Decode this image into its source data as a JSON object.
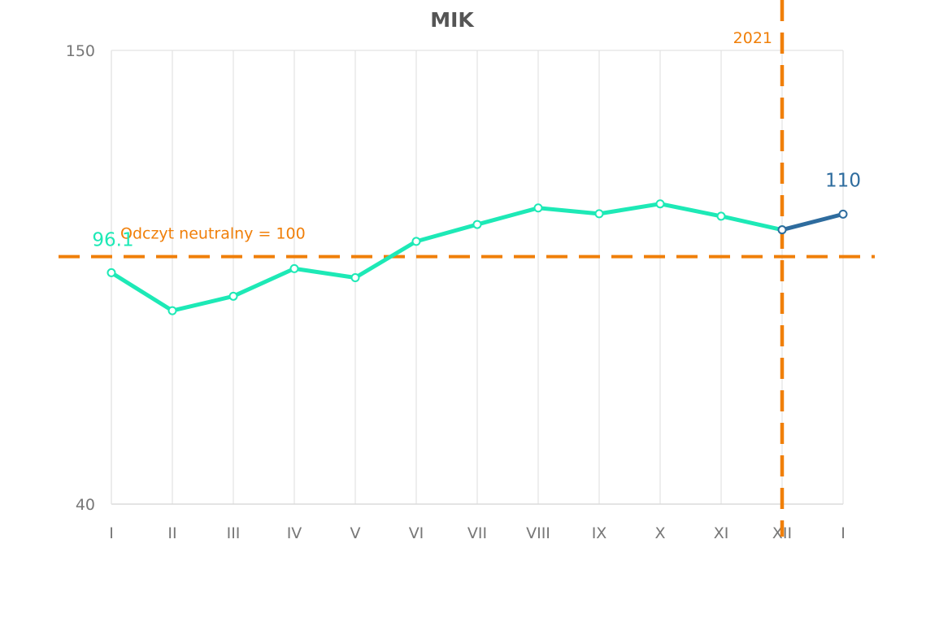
{
  "chart_data": {
    "type": "line",
    "title": "MIK",
    "xlabel": "",
    "ylabel": "",
    "categories": [
      "I",
      "II",
      "III",
      "IV",
      "V",
      "VI",
      "VII",
      "VIII",
      "IX",
      "X",
      "XI",
      "XII",
      "I"
    ],
    "ylim": [
      40,
      150
    ],
    "yticks": [
      40,
      150
    ],
    "grid": "vertical",
    "series": [
      {
        "color": "#1de9b6",
        "values": [
          96.1,
          86.9,
          90.4,
          97.1,
          94.9,
          103.7,
          107.8,
          111.8,
          110.4,
          112.8,
          109.8,
          106.5,
          null
        ]
      },
      {
        "color": "#2e6c9e",
        "values": [
          null,
          null,
          null,
          null,
          null,
          null,
          null,
          null,
          null,
          null,
          null,
          106.5,
          110.3
        ]
      }
    ],
    "reference_line": {
      "y": 100,
      "label": "Odczyt neutralny = 100",
      "color": "#f07f09"
    },
    "year_marker": {
      "at_category_index": 11,
      "label": "2021",
      "color": "#f07f09"
    },
    "data_labels": [
      {
        "category_index": 0,
        "text": "96.1",
        "color": "#1de9b6"
      },
      {
        "category_index": 12,
        "text": "110",
        "color": "#2e6c9e"
      }
    ]
  }
}
